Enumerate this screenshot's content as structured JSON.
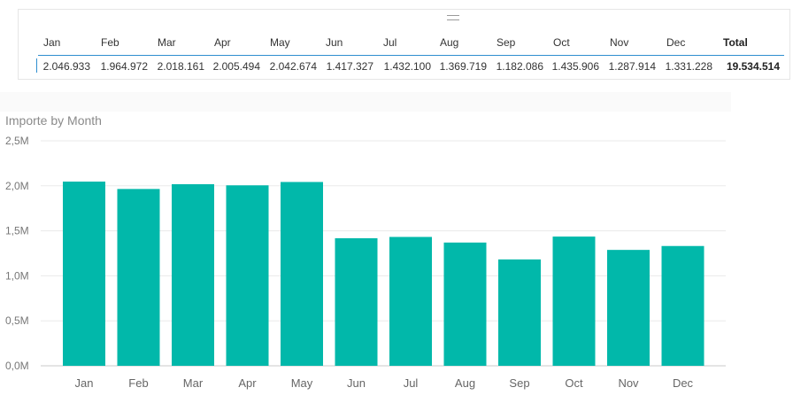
{
  "table": {
    "headers": [
      "Jan",
      "Feb",
      "Mar",
      "Apr",
      "May",
      "Jun",
      "Jul",
      "Aug",
      "Sep",
      "Oct",
      "Nov",
      "Dec",
      "Total"
    ],
    "values": [
      "2.046.933",
      "1.964.972",
      "2.018.161",
      "2.005.494",
      "2.042.674",
      "1.417.327",
      "1.432.100",
      "1.369.719",
      "1.182.086",
      "1.435.906",
      "1.287.914",
      "1.331.228",
      "19.534.514"
    ]
  },
  "chart_data": {
    "type": "bar",
    "title": "Importe by Month",
    "categories": [
      "Jan",
      "Feb",
      "Mar",
      "Apr",
      "May",
      "Jun",
      "Jul",
      "Aug",
      "Sep",
      "Oct",
      "Nov",
      "Dec"
    ],
    "values": [
      2046933,
      1964972,
      2018161,
      2005494,
      2042674,
      1417327,
      1432100,
      1369719,
      1182086,
      1435906,
      1287914,
      1331228
    ],
    "ylim": [
      0,
      2500000
    ],
    "yticks": [
      0,
      500000,
      1000000,
      1500000,
      2000000,
      2500000
    ],
    "ytick_labels": [
      "0,0M",
      "0,5M",
      "1,0M",
      "1,5M",
      "2,0M",
      "2,5M"
    ],
    "grid": true,
    "bar_color": "#01b8aa"
  }
}
